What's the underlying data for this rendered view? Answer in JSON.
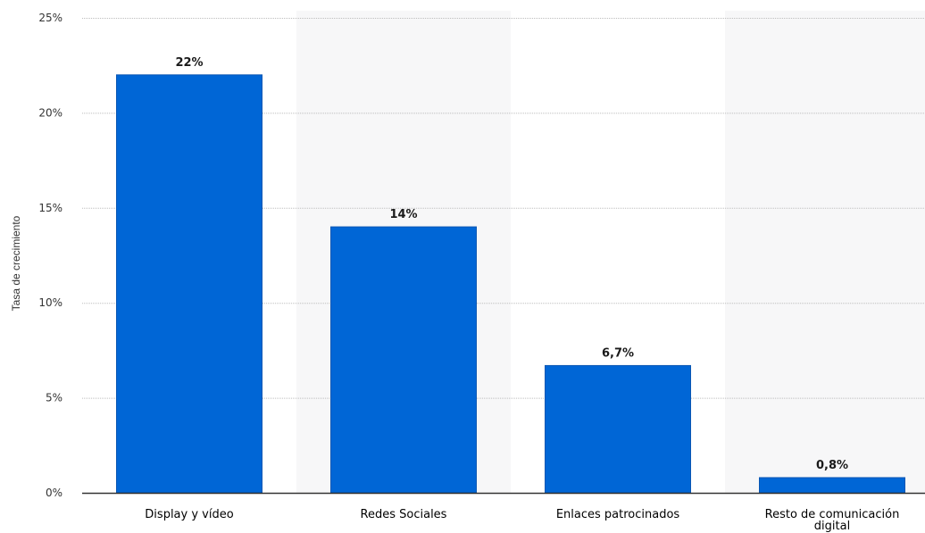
{
  "chart_data": {
    "type": "bar",
    "categories": [
      "Display y vídeo",
      "Redes Sociales",
      "Enlaces patrocinados",
      "Resto de comunicación digital"
    ],
    "category_label_lines": [
      [
        "Display y vídeo"
      ],
      [
        "Redes Sociales"
      ],
      [
        "Enlaces patrocinados"
      ],
      [
        "Resto de comunicación",
        "digital"
      ]
    ],
    "values": [
      22,
      14,
      6.7,
      0.8
    ],
    "data_labels": [
      "22%",
      "14%",
      "6,7%",
      "0,8%"
    ],
    "title": "",
    "xlabel": "",
    "ylabel": "Tasa de crecimiento",
    "ylim": [
      0,
      25
    ],
    "y_ticks": [
      0,
      5,
      10,
      15,
      20,
      25
    ],
    "y_tick_labels": [
      "0%",
      "5%",
      "10%",
      "15%",
      "20%",
      "25%"
    ],
    "grid": true,
    "colors": {
      "bar": "#0066d6",
      "bar_edge": "#0a57b3",
      "band": "#f7f7f8",
      "grid": "#bdbdbd",
      "axis": "#333333"
    }
  }
}
